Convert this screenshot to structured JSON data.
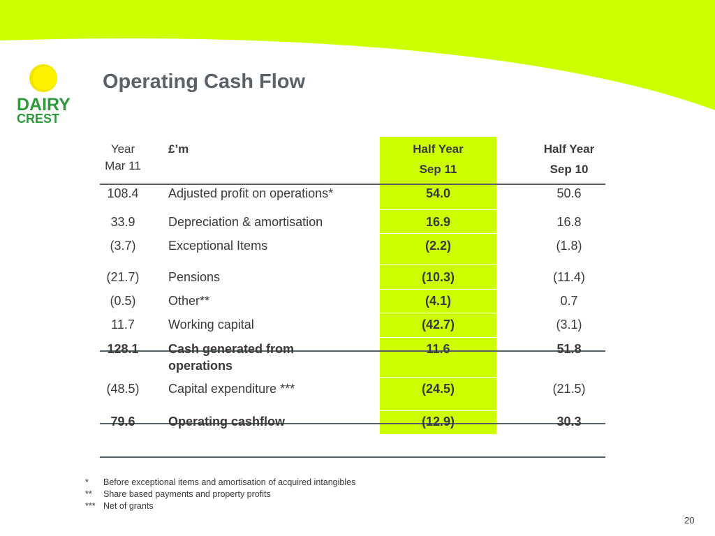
{
  "title": "Operating Cash Flow",
  "logo": {
    "word1": "DAIRY",
    "word2": "CREST"
  },
  "colors": {
    "banner": "#ccff00",
    "highlight": "#ccff00",
    "logo_green": "#2e9a3c",
    "logo_sun": "#fff200",
    "title": "#5a6169"
  },
  "table": {
    "headers": {
      "col1_line1": "Year",
      "col1_line2": "Mar 11",
      "col2": "£’m",
      "col3_line1": "Half Year",
      "col3_line2": "Sep 11",
      "col4_line1": "Half Year",
      "col4_line2": "Sep 10"
    },
    "rows": [
      {
        "year": "108.4",
        "label": "Adjusted profit on operations*",
        "sep11": "54.0",
        "sep10": "50.6"
      },
      {
        "year": "33.9",
        "label": "Depreciation & amortisation",
        "sep11": "16.9",
        "sep10": "16.8"
      },
      {
        "year": "(3.7)",
        "label": "Exceptional Items",
        "sep11": "(2.2)",
        "sep10": "(1.8)"
      },
      {
        "year": "(21.7)",
        "label": "Pensions",
        "sep11": "(10.3)",
        "sep10": "(11.4)"
      },
      {
        "year": "(0.5)",
        "label": "Other**",
        "sep11": "(4.1)",
        "sep10": "0.7"
      },
      {
        "year": "11.7",
        "label": "Working capital",
        "sep11": "(42.7)",
        "sep10": "(3.1)"
      },
      {
        "year": "128.1",
        "label": "Cash generated from",
        "label2": "operations",
        "sep11": "11.6",
        "sep10": "51.8"
      },
      {
        "year": "(48.5)",
        "label": "Capital expenditure ***",
        "sep11": "(24.5)",
        "sep10": "(21.5)"
      },
      {
        "year": "79.6",
        "label": "Operating cashflow",
        "sep11": "(12.9)",
        "sep10": "30.3"
      }
    ]
  },
  "footnotes": [
    {
      "mark": "*",
      "text": "Before exceptional items and amortisation of acquired intangibles"
    },
    {
      "mark": "**",
      "text": "Share based payments and property profits"
    },
    {
      "mark": "***",
      "text": "Net of grants"
    }
  ],
  "page_number": "20"
}
